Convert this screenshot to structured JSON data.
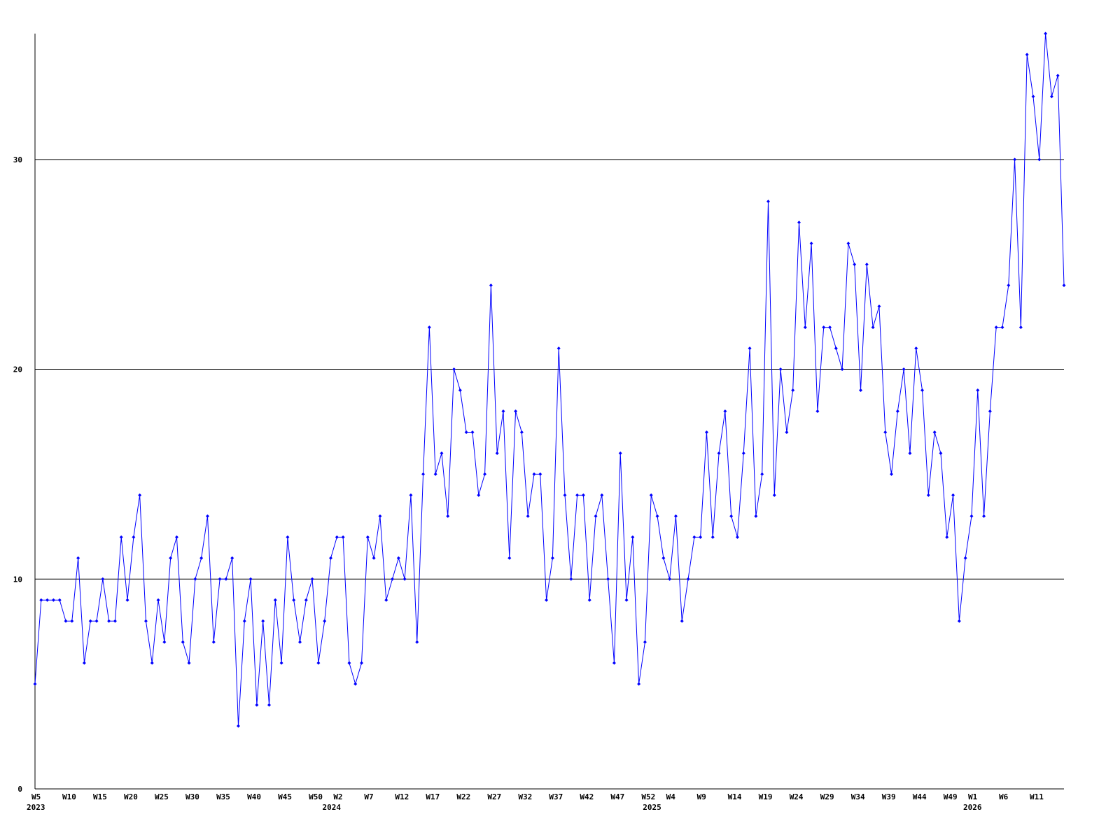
{
  "chart_data": {
    "type": "line",
    "categories": [
      "W5",
      null,
      null,
      null,
      null,
      "W10",
      null,
      null,
      null,
      null,
      "W15",
      null,
      null,
      null,
      null,
      "W20",
      null,
      null,
      null,
      null,
      "W25",
      null,
      null,
      null,
      null,
      "W30",
      null,
      null,
      null,
      null,
      "W35",
      null,
      null,
      null,
      null,
      "W40",
      null,
      null,
      null,
      null,
      "W45",
      null,
      null,
      null,
      null,
      "W50",
      null,
      null,
      null,
      "W2",
      null,
      null,
      null,
      null,
      "W7",
      null,
      null,
      null,
      null,
      "W12",
      null,
      null,
      null,
      null,
      "W17",
      null,
      null,
      null,
      null,
      "W22",
      null,
      null,
      null,
      null,
      "W27",
      null,
      null,
      null,
      null,
      "W32",
      null,
      null,
      null,
      null,
      "W37",
      null,
      null,
      null,
      null,
      "W42",
      null,
      null,
      null,
      null,
      "W47",
      null,
      null,
      null,
      null,
      "W52",
      null,
      null,
      null,
      "W4",
      null,
      null,
      null,
      null,
      "W9",
      null,
      null,
      null,
      null,
      "W14",
      null,
      null,
      null,
      null,
      "W19",
      null,
      null,
      null,
      null,
      "W24",
      null,
      null,
      null,
      null,
      "W29",
      null,
      null,
      null,
      null,
      "W34",
      null,
      null,
      null,
      null,
      "W39",
      null,
      null,
      null,
      null,
      "W44",
      null,
      null,
      null,
      null,
      "W49",
      null,
      null,
      null,
      "W1",
      null,
      null,
      null,
      null,
      "W6",
      null,
      null,
      null,
      null,
      "W11",
      null,
      null,
      null,
      null,
      null
    ],
    "years": [
      "2023",
      null,
      null,
      null,
      null,
      null,
      null,
      null,
      null,
      null,
      null,
      null,
      null,
      null,
      null,
      null,
      null,
      null,
      null,
      null,
      null,
      null,
      null,
      null,
      null,
      null,
      null,
      null,
      null,
      null,
      null,
      null,
      null,
      null,
      null,
      null,
      null,
      null,
      null,
      null,
      null,
      null,
      null,
      null,
      null,
      null,
      null,
      null,
      "2024",
      null,
      null,
      null,
      null,
      null,
      null,
      null,
      null,
      null,
      null,
      null,
      null,
      null,
      null,
      null,
      null,
      null,
      null,
      null,
      null,
      null,
      null,
      null,
      null,
      null,
      null,
      null,
      null,
      null,
      null,
      null,
      null,
      null,
      null,
      null,
      null,
      null,
      null,
      null,
      null,
      null,
      null,
      null,
      null,
      null,
      null,
      null,
      null,
      null,
      null,
      null,
      "2025",
      null,
      null,
      null,
      null,
      null,
      null,
      null,
      null,
      null,
      null,
      null,
      null,
      null,
      null,
      null,
      null,
      null,
      null,
      null,
      null,
      null,
      null,
      null,
      null,
      null,
      null,
      null,
      null,
      null,
      null,
      null,
      null,
      null,
      null,
      null,
      null,
      null,
      null,
      null,
      null,
      null,
      null,
      null,
      null,
      null,
      null,
      null,
      null,
      null,
      null,
      null,
      "2026",
      null,
      null,
      null,
      null,
      null,
      null,
      null,
      null,
      null,
      null,
      null,
      null,
      null,
      null,
      null
    ],
    "values": [
      5,
      9,
      9,
      9,
      9,
      8,
      8,
      11,
      6,
      8,
      8,
      10,
      8,
      8,
      12,
      9,
      12,
      14,
      8,
      6,
      9,
      7,
      11,
      12,
      7,
      6,
      10,
      11,
      13,
      7,
      10,
      10,
      11,
      3,
      8,
      10,
      4,
      8,
      4,
      9,
      6,
      12,
      9,
      7,
      9,
      10,
      6,
      8,
      11,
      12,
      12,
      6,
      5,
      6,
      12,
      11,
      13,
      9,
      10,
      11,
      10,
      14,
      7,
      15,
      22,
      15,
      16,
      13,
      20,
      19,
      17,
      17,
      14,
      15,
      24,
      16,
      18,
      11,
      18,
      17,
      13,
      15,
      15,
      9,
      11,
      21,
      14,
      10,
      14,
      14,
      9,
      13,
      14,
      10,
      6,
      16,
      9,
      12,
      5,
      7,
      14,
      13,
      11,
      10,
      13,
      8,
      10,
      12,
      12,
      17,
      12,
      16,
      18,
      13,
      12,
      16,
      21,
      13,
      15,
      28,
      14,
      20,
      17,
      19,
      27,
      22,
      26,
      18,
      22,
      22,
      21,
      20,
      26,
      25,
      19,
      25,
      22,
      23,
      17,
      15,
      18,
      20,
      16,
      21,
      19,
      14,
      17,
      16,
      12,
      14,
      8,
      11,
      13,
      19,
      13,
      18,
      22,
      22,
      24,
      30,
      22,
      35,
      33,
      30,
      36,
      33,
      34,
      24
    ],
    "color": "#0000ff",
    "ylim": [
      0,
      36
    ],
    "yticks": [
      0,
      10,
      20,
      30
    ],
    "grid": true
  }
}
